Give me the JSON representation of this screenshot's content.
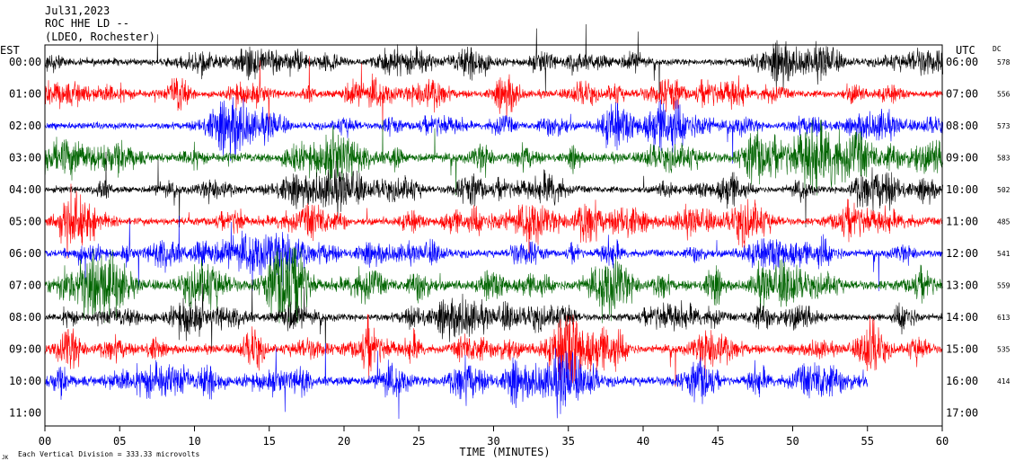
{
  "header": {
    "date": "Jul31,2023",
    "station": "ROC HHE LD --",
    "network": "(LDEO, Rochester)"
  },
  "left_axis_label": "EST",
  "right_axis_label": "UTC",
  "dc_label": "DC",
  "footer": {
    "scale_text": "Each Vertical Division =  333.33 microvolts",
    "corner_mark": "JK"
  },
  "chart_data": {
    "type": "line",
    "xlabel": "TIME (MINUTES)",
    "xlim": [
      0,
      60
    ],
    "x_ticks": [
      "00",
      "05",
      "10",
      "15",
      "20",
      "25",
      "30",
      "35",
      "40",
      "45",
      "50",
      "55",
      "60"
    ],
    "x_tick_values": [
      0,
      5,
      10,
      15,
      20,
      25,
      30,
      35,
      40,
      45,
      50,
      55,
      60
    ],
    "colors": {
      "black": "#000000",
      "red": "#ff0000",
      "blue": "#0000ff",
      "green": "#006400"
    },
    "rows": [
      {
        "est": "00:00",
        "utc": "06:00",
        "dc": "578",
        "color": "black",
        "amplitude": 1.0,
        "end_minute": 60
      },
      {
        "est": "01:00",
        "utc": "07:00",
        "dc": "556",
        "color": "red",
        "amplitude": 1.1,
        "end_minute": 60
      },
      {
        "est": "02:00",
        "utc": "08:00",
        "dc": "573",
        "color": "blue",
        "amplitude": 1.0,
        "end_minute": 60
      },
      {
        "est": "03:00",
        "utc": "09:00",
        "dc": "583",
        "color": "green",
        "amplitude": 1.4,
        "end_minute": 60
      },
      {
        "est": "04:00",
        "utc": "10:00",
        "dc": "502",
        "color": "black",
        "amplitude": 1.0,
        "end_minute": 60
      },
      {
        "est": "05:00",
        "utc": "11:00",
        "dc": "485",
        "color": "red",
        "amplitude": 1.1,
        "end_minute": 60
      },
      {
        "est": "06:00",
        "utc": "12:00",
        "dc": "541",
        "color": "blue",
        "amplitude": 1.1,
        "end_minute": 60
      },
      {
        "est": "07:00",
        "utc": "13:00",
        "dc": "559",
        "color": "green",
        "amplitude": 1.5,
        "end_minute": 60
      },
      {
        "est": "08:00",
        "utc": "14:00",
        "dc": "613",
        "color": "black",
        "amplitude": 1.1,
        "end_minute": 60
      },
      {
        "est": "09:00",
        "utc": "15:00",
        "dc": "535",
        "color": "red",
        "amplitude": 1.3,
        "end_minute": 60
      },
      {
        "est": "10:00",
        "utc": "16:00",
        "dc": "414",
        "color": "blue",
        "amplitude": 1.4,
        "end_minute": 55
      },
      {
        "est": "11:00",
        "utc": "17:00",
        "dc": "",
        "color": "black",
        "amplitude": 0,
        "end_minute": 0
      }
    ]
  }
}
